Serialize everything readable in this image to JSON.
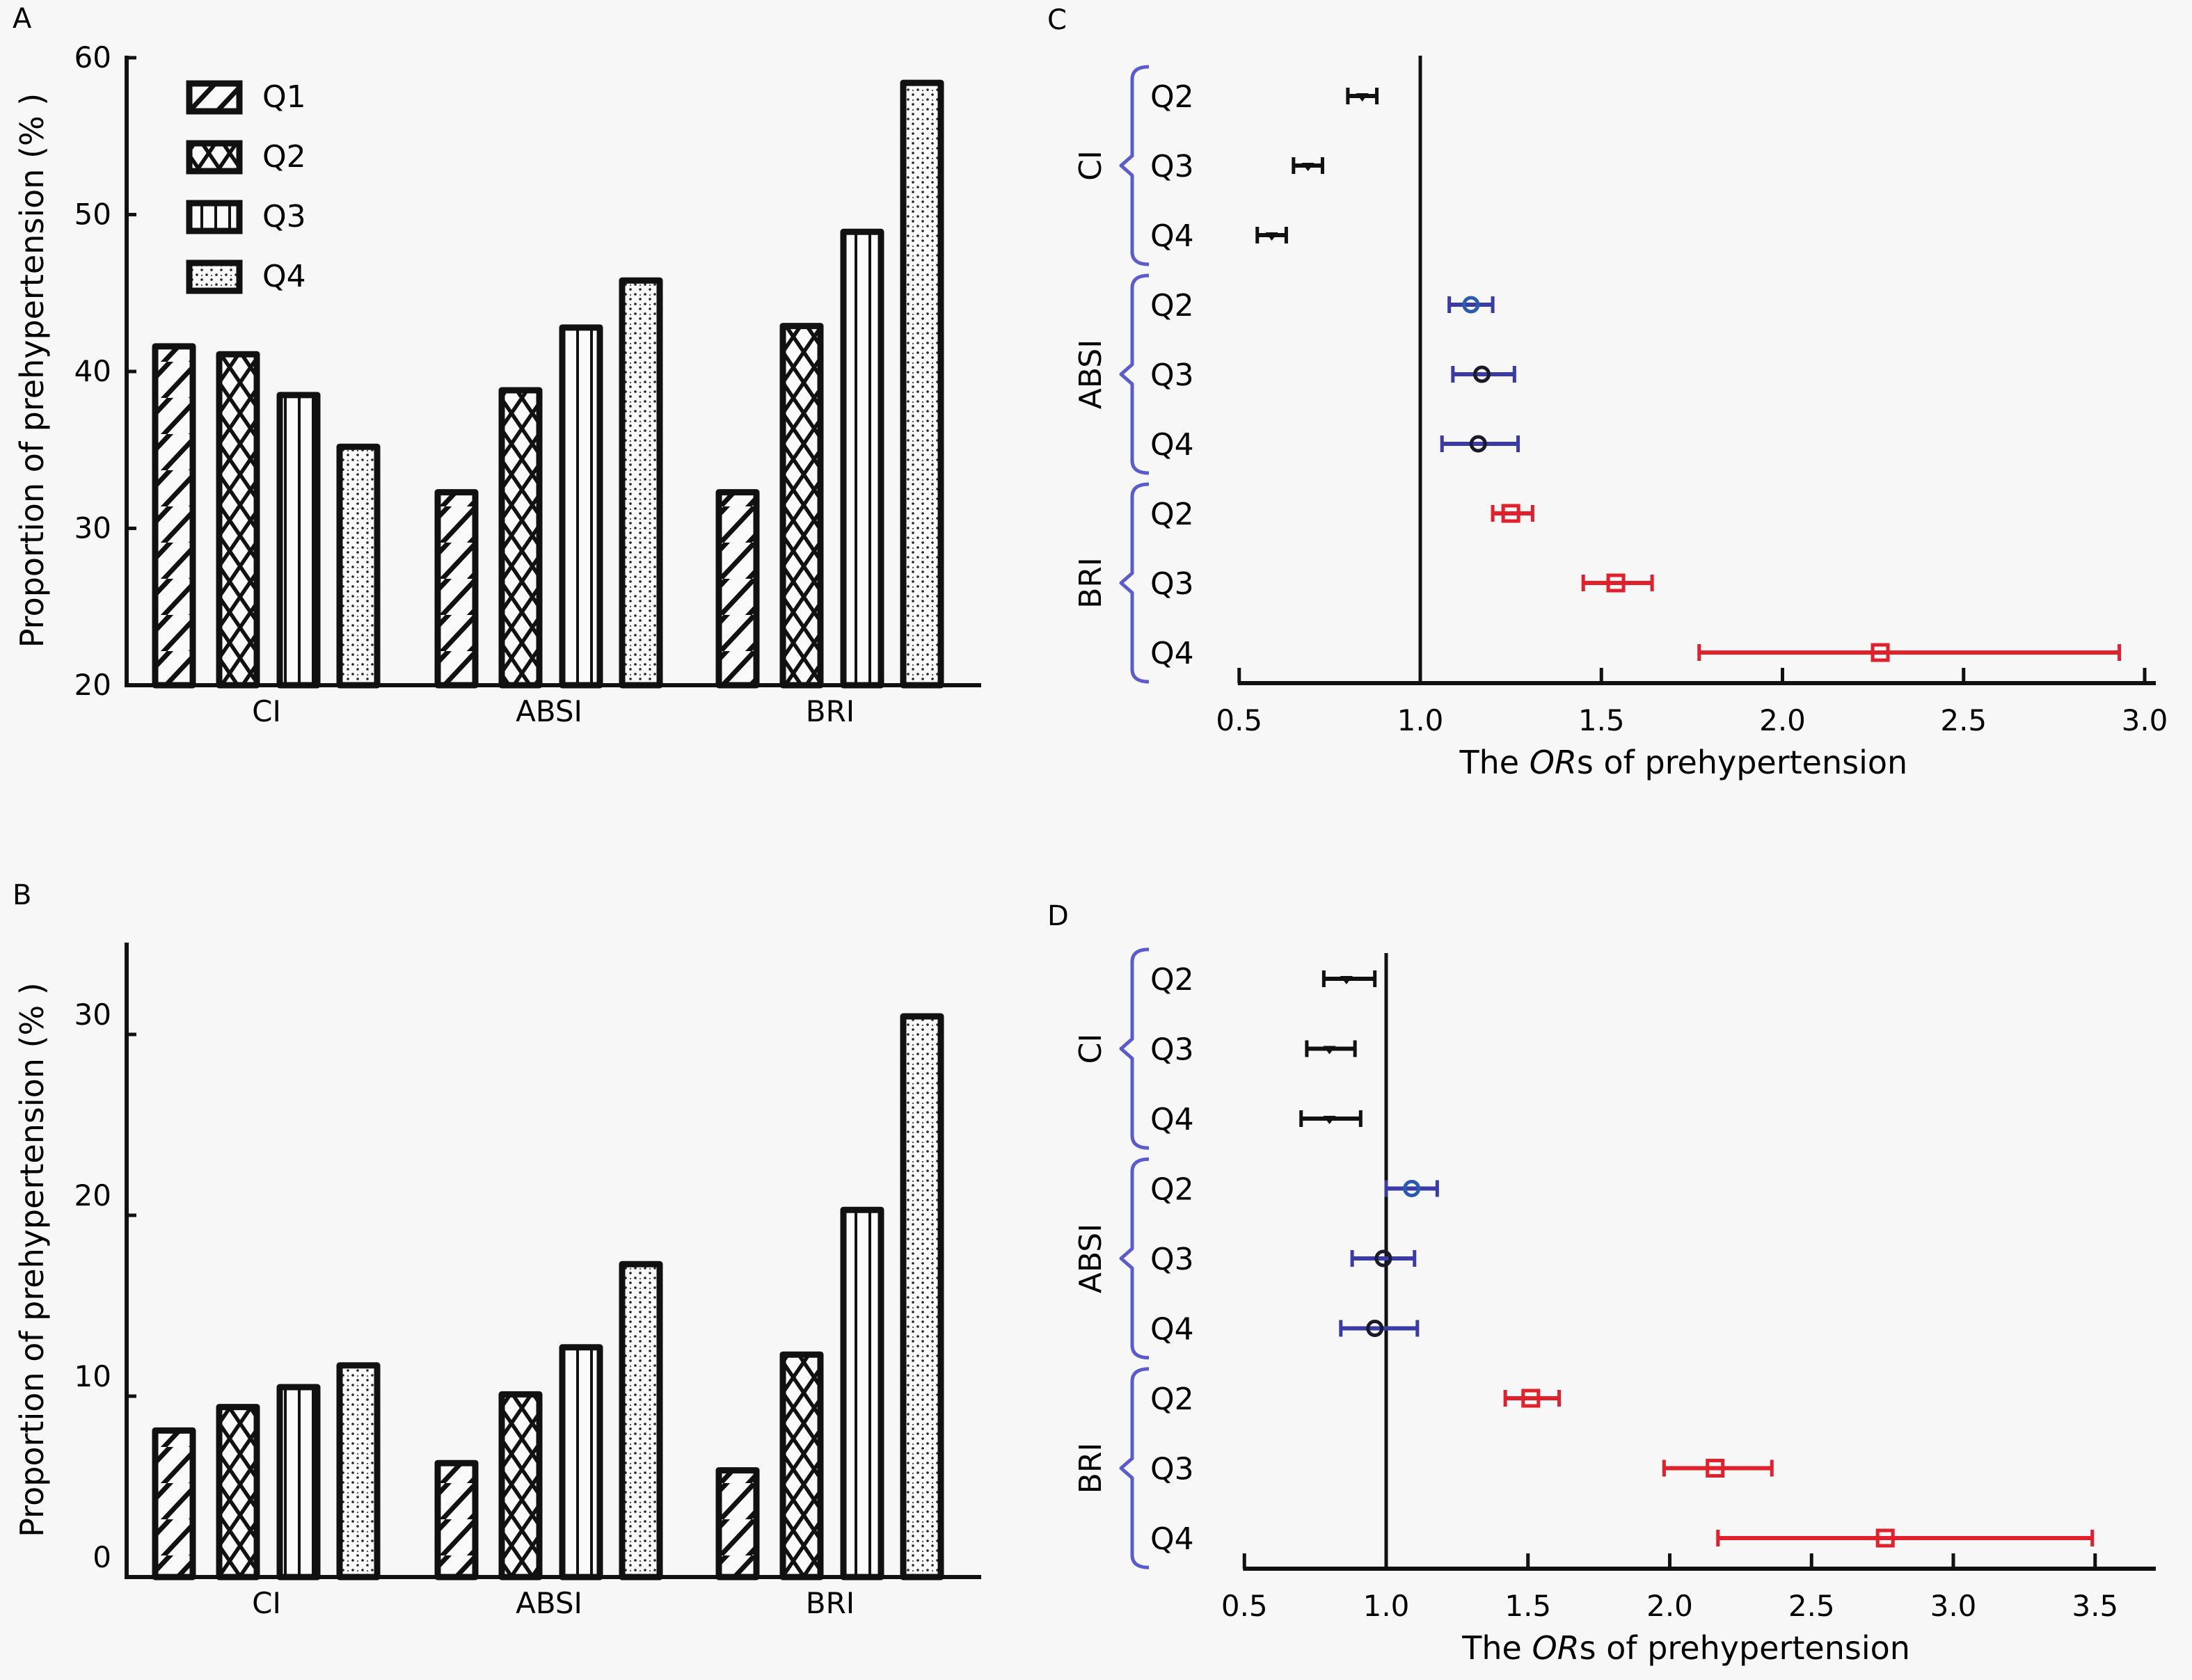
{
  "panels": {
    "A": "A",
    "B": "B",
    "C": "C",
    "D": "D"
  },
  "colors": {
    "ci": "#111111",
    "absi": "#3b3ba8",
    "absi_marker_q2": "#2b5bb0",
    "bri": "#e0202a",
    "brace": "#5b5bd0",
    "axis": "#111111"
  },
  "legend": [
    "Q1",
    "Q2",
    "Q3",
    "Q4"
  ],
  "chart_data": [
    {
      "id": "A",
      "type": "bar",
      "title": "",
      "xlabel": "",
      "ylabel": "Proportion of prehypertension (% )",
      "categories": [
        "CI",
        "ABSI",
        "BRI"
      ],
      "ylim": [
        20,
        60
      ],
      "yticks": [
        20,
        30,
        40,
        50,
        60
      ],
      "legend_position": "top-left",
      "grid": false,
      "series": [
        {
          "name": "Q1",
          "pattern": "diagonal",
          "values": [
            41.6,
            32.3,
            32.3
          ]
        },
        {
          "name": "Q2",
          "pattern": "crosshatch",
          "values": [
            41.1,
            38.8,
            42.9
          ]
        },
        {
          "name": "Q3",
          "pattern": "vertical",
          "values": [
            38.5,
            42.8,
            48.9
          ]
        },
        {
          "name": "Q4",
          "pattern": "dots",
          "values": [
            35.2,
            45.8,
            58.4
          ]
        }
      ]
    },
    {
      "id": "B",
      "type": "bar",
      "title": "",
      "xlabel": "",
      "ylabel": "Proportion of prehypertension (% )",
      "categories": [
        "CI",
        "ABSI",
        "BRI"
      ],
      "ylim": [
        0,
        35
      ],
      "yticks": [
        0,
        10,
        20,
        30
      ],
      "grid": false,
      "series": [
        {
          "name": "Q1",
          "pattern": "diagonal",
          "values": [
            8.1,
            6.3,
            5.9
          ]
        },
        {
          "name": "Q2",
          "pattern": "crosshatch",
          "values": [
            9.4,
            10.1,
            12.3
          ]
        },
        {
          "name": "Q3",
          "pattern": "vertical",
          "values": [
            10.5,
            12.7,
            20.3
          ]
        },
        {
          "name": "Q4",
          "pattern": "dots",
          "values": [
            11.7,
            17.3,
            31.0
          ]
        }
      ]
    },
    {
      "id": "C",
      "type": "scatter",
      "subtype": "forest",
      "xlabel_parts": [
        "The ",
        "OR",
        "s of prehypertension"
      ],
      "xlim": [
        0.5,
        3.0
      ],
      "xticks": [
        "0.5",
        "1.0",
        "1.5",
        "2.0",
        "2.5",
        "3.0"
      ],
      "xtick_values": [
        0.5,
        1.0,
        1.5,
        2.0,
        2.5,
        3.0
      ],
      "reference_line": 1.0,
      "groups": [
        {
          "name": "CI",
          "marker": "triangle-down",
          "color": "#111111",
          "rows": [
            {
              "label": "Q2",
              "or": 0.84,
              "lo": 0.8,
              "hi": 0.88
            },
            {
              "label": "Q3",
              "or": 0.69,
              "lo": 0.65,
              "hi": 0.73
            },
            {
              "label": "Q4",
              "or": 0.59,
              "lo": 0.55,
              "hi": 0.63
            }
          ]
        },
        {
          "name": "ABSI",
          "marker": "circle",
          "color": "#3b3ba8",
          "rows": [
            {
              "label": "Q2",
              "or": 1.14,
              "lo": 1.08,
              "hi": 1.2
            },
            {
              "label": "Q3",
              "or": 1.17,
              "lo": 1.09,
              "hi": 1.26
            },
            {
              "label": "Q4",
              "or": 1.16,
              "lo": 1.06,
              "hi": 1.27
            }
          ]
        },
        {
          "name": "BRI",
          "marker": "square",
          "color": "#e0202a",
          "rows": [
            {
              "label": "Q2",
              "or": 1.25,
              "lo": 1.2,
              "hi": 1.31
            },
            {
              "label": "Q3",
              "or": 1.54,
              "lo": 1.45,
              "hi": 1.64
            },
            {
              "label": "Q4",
              "or": 2.27,
              "lo": 1.77,
              "hi": 2.93
            }
          ]
        }
      ]
    },
    {
      "id": "D",
      "type": "scatter",
      "subtype": "forest",
      "xlabel_parts": [
        "The ",
        "OR",
        "s of prehypertension"
      ],
      "xlim": [
        0.5,
        3.7
      ],
      "xticks": [
        "0.5",
        "1.0",
        "1.5",
        "2.0",
        "2.5",
        "3.0",
        "3.5"
      ],
      "xtick_values": [
        0.5,
        1.0,
        1.5,
        2.0,
        2.5,
        3.0,
        3.5
      ],
      "reference_line": 1.0,
      "groups": [
        {
          "name": "CI",
          "marker": "triangle-down",
          "color": "#111111",
          "rows": [
            {
              "label": "Q2",
              "or": 0.86,
              "lo": 0.78,
              "hi": 0.96
            },
            {
              "label": "Q3",
              "or": 0.8,
              "lo": 0.72,
              "hi": 0.89
            },
            {
              "label": "Q4",
              "or": 0.8,
              "lo": 0.7,
              "hi": 0.91
            }
          ]
        },
        {
          "name": "ABSI",
          "marker": "circle",
          "color": "#3b3ba8",
          "rows": [
            {
              "label": "Q2",
              "or": 1.09,
              "lo": 1.0,
              "hi": 1.18
            },
            {
              "label": "Q3",
              "or": 0.99,
              "lo": 0.88,
              "hi": 1.1
            },
            {
              "label": "Q4",
              "or": 0.96,
              "lo": 0.84,
              "hi": 1.11
            }
          ]
        },
        {
          "name": "BRI",
          "marker": "square",
          "color": "#e0202a",
          "rows": [
            {
              "label": "Q2",
              "or": 1.51,
              "lo": 1.42,
              "hi": 1.61
            },
            {
              "label": "Q3",
              "or": 2.16,
              "lo": 1.98,
              "hi": 2.36
            },
            {
              "label": "Q4",
              "or": 2.76,
              "lo": 2.17,
              "hi": 3.49
            }
          ]
        }
      ]
    }
  ]
}
